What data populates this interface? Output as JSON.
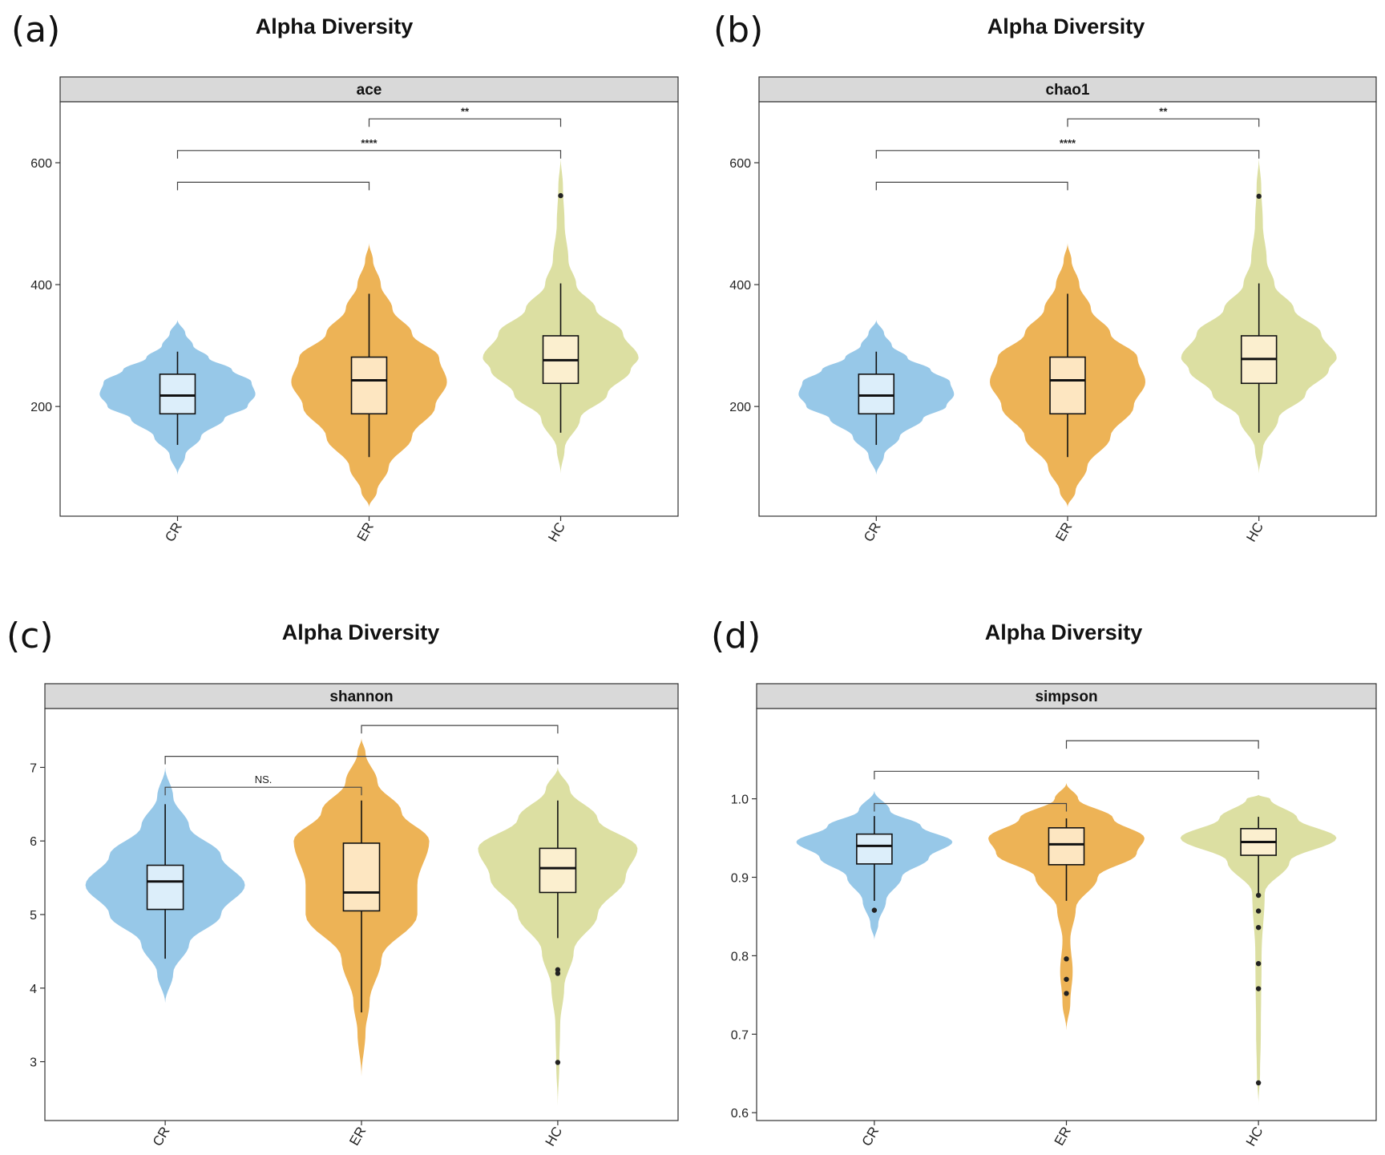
{
  "colors": {
    "CR": "#8ec3e6",
    "ER": "#ecad48",
    "HC": "#d9dc9a",
    "CR_box": "#dceefa",
    "ER_box": "#fde6c1",
    "HC_box": "#fbefcf",
    "strip": "#d9d9d9"
  },
  "chart_data": [
    {
      "type": "violin",
      "panel_label": "(a)",
      "title": "Alpha Diversity",
      "facet": "ace",
      "categories": [
        "CR",
        "ER",
        "HC"
      ],
      "ylim": [
        20,
        700
      ],
      "yticks": [
        200,
        400,
        600
      ],
      "groups": [
        {
          "name": "CR",
          "violin": [
            [
              88,
              0
            ],
            [
              120,
              0.1
            ],
            [
              150,
              0.3
            ],
            [
              180,
              0.6
            ],
            [
              200,
              0.9
            ],
            [
              220,
              1.0
            ],
            [
              240,
              0.95
            ],
            [
              260,
              0.7
            ],
            [
              280,
              0.4
            ],
            [
              300,
              0.2
            ],
            [
              320,
              0.1
            ],
            [
              342,
              0
            ]
          ],
          "q1": 188,
          "median": 218,
          "q3": 253,
          "wlo": 137,
          "whi": 290,
          "outliers": []
        },
        {
          "name": "ER",
          "violin": [
            [
              35,
              0
            ],
            [
              60,
              0.1
            ],
            [
              100,
              0.25
            ],
            [
              150,
              0.55
            ],
            [
              200,
              0.85
            ],
            [
              240,
              1.0
            ],
            [
              280,
              0.9
            ],
            [
              320,
              0.55
            ],
            [
              360,
              0.3
            ],
            [
              400,
              0.15
            ],
            [
              440,
              0.05
            ],
            [
              468,
              0
            ]
          ],
          "q1": 188,
          "median": 243,
          "q3": 281,
          "wlo": 117,
          "whi": 385,
          "outliers": []
        },
        {
          "name": "HC",
          "violin": [
            [
              90,
              0
            ],
            [
              130,
              0.05
            ],
            [
              180,
              0.25
            ],
            [
              220,
              0.6
            ],
            [
              260,
              0.9
            ],
            [
              280,
              1.0
            ],
            [
              320,
              0.8
            ],
            [
              360,
              0.45
            ],
            [
              400,
              0.2
            ],
            [
              440,
              0.1
            ],
            [
              500,
              0.05
            ],
            [
              560,
              0.03
            ],
            [
              610,
              0
            ]
          ],
          "q1": 238,
          "median": 276,
          "q3": 316,
          "wlo": 157,
          "whi": 402,
          "outliers": [
            546
          ]
        }
      ],
      "brackets": [
        {
          "from": 0,
          "to": 1,
          "y": 568,
          "label": ""
        },
        {
          "from": 0,
          "to": 2,
          "y": 620,
          "label": "****"
        },
        {
          "from": 1,
          "to": 2,
          "y": 672,
          "label": "**"
        }
      ]
    },
    {
      "type": "violin",
      "panel_label": "(b)",
      "title": "Alpha Diversity",
      "facet": "chao1",
      "categories": [
        "CR",
        "ER",
        "HC"
      ],
      "ylim": [
        20,
        700
      ],
      "yticks": [
        200,
        400,
        600
      ],
      "groups": [
        {
          "name": "CR",
          "violin": [
            [
              88,
              0
            ],
            [
              120,
              0.1
            ],
            [
              150,
              0.3
            ],
            [
              180,
              0.6
            ],
            [
              200,
              0.9
            ],
            [
              220,
              1.0
            ],
            [
              240,
              0.95
            ],
            [
              260,
              0.7
            ],
            [
              280,
              0.4
            ],
            [
              300,
              0.2
            ],
            [
              320,
              0.1
            ],
            [
              342,
              0
            ]
          ],
          "q1": 188,
          "median": 218,
          "q3": 253,
          "wlo": 137,
          "whi": 290,
          "outliers": []
        },
        {
          "name": "ER",
          "violin": [
            [
              35,
              0
            ],
            [
              60,
              0.1
            ],
            [
              100,
              0.25
            ],
            [
              150,
              0.55
            ],
            [
              200,
              0.85
            ],
            [
              240,
              1.0
            ],
            [
              280,
              0.9
            ],
            [
              320,
              0.55
            ],
            [
              360,
              0.3
            ],
            [
              400,
              0.15
            ],
            [
              440,
              0.05
            ],
            [
              468,
              0
            ]
          ],
          "q1": 188,
          "median": 243,
          "q3": 281,
          "wlo": 117,
          "whi": 385,
          "outliers": []
        },
        {
          "name": "HC",
          "violin": [
            [
              90,
              0
            ],
            [
              130,
              0.05
            ],
            [
              180,
              0.25
            ],
            [
              220,
              0.6
            ],
            [
              260,
              0.9
            ],
            [
              280,
              1.0
            ],
            [
              320,
              0.8
            ],
            [
              360,
              0.45
            ],
            [
              400,
              0.2
            ],
            [
              440,
              0.1
            ],
            [
              500,
              0.05
            ],
            [
              560,
              0.03
            ],
            [
              610,
              0
            ]
          ],
          "q1": 238,
          "median": 278,
          "q3": 316,
          "wlo": 157,
          "whi": 402,
          "outliers": [
            545
          ]
        }
      ],
      "brackets": [
        {
          "from": 0,
          "to": 1,
          "y": 568,
          "label": ""
        },
        {
          "from": 0,
          "to": 2,
          "y": 620,
          "label": "****"
        },
        {
          "from": 1,
          "to": 2,
          "y": 672,
          "label": "**"
        }
      ]
    },
    {
      "type": "violin",
      "panel_label": "(c)",
      "title": "Alpha Diversity",
      "facet": "shannon",
      "categories": [
        "CR",
        "ER",
        "HC"
      ],
      "ylim": [
        2.2,
        7.8
      ],
      "yticks": [
        3,
        4,
        5,
        6,
        7
      ],
      "groups": [
        {
          "name": "CR",
          "violin": [
            [
              3.8,
              0
            ],
            [
              4.2,
              0.1
            ],
            [
              4.6,
              0.3
            ],
            [
              5.0,
              0.7
            ],
            [
              5.4,
              1.0
            ],
            [
              5.8,
              0.7
            ],
            [
              6.2,
              0.3
            ],
            [
              6.6,
              0.1
            ],
            [
              7.0,
              0
            ]
          ],
          "q1": 5.07,
          "median": 5.45,
          "q3": 5.67,
          "wlo": 4.4,
          "whi": 6.5,
          "outliers": []
        },
        {
          "name": "ER",
          "violin": [
            [
              2.8,
              0
            ],
            [
              3.4,
              0.05
            ],
            [
              3.8,
              0.1
            ],
            [
              4.4,
              0.25
            ],
            [
              5.0,
              0.7
            ],
            [
              5.4,
              0.7
            ],
            [
              6.0,
              0.85
            ],
            [
              6.4,
              0.5
            ],
            [
              6.8,
              0.2
            ],
            [
              7.2,
              0.05
            ],
            [
              7.4,
              0
            ]
          ],
          "q1": 5.05,
          "median": 5.3,
          "q3": 5.97,
          "wlo": 3.67,
          "whi": 6.55,
          "outliers": []
        },
        {
          "name": "HC",
          "violin": [
            [
              2.4,
              0
            ],
            [
              3.0,
              0.02
            ],
            [
              3.5,
              0.03
            ],
            [
              4.0,
              0.08
            ],
            [
              4.5,
              0.2
            ],
            [
              5.0,
              0.5
            ],
            [
              5.5,
              0.85
            ],
            [
              5.9,
              1.0
            ],
            [
              6.3,
              0.5
            ],
            [
              6.7,
              0.15
            ],
            [
              7.0,
              0
            ]
          ],
          "q1": 5.3,
          "median": 5.63,
          "q3": 5.9,
          "wlo": 4.68,
          "whi": 6.55,
          "outliers": [
            4.2,
            4.25,
            2.99
          ]
        }
      ],
      "brackets": [
        {
          "from": 0,
          "to": 1,
          "y": 6.73,
          "label": "NS."
        },
        {
          "from": 0,
          "to": 2,
          "y": 7.15,
          "label": ""
        },
        {
          "from": 1,
          "to": 2,
          "y": 7.57,
          "label": ""
        }
      ]
    },
    {
      "type": "violin",
      "panel_label": "(d)",
      "title": "Alpha Diversity",
      "facet": "simpson",
      "categories": [
        "CR",
        "ER",
        "HC"
      ],
      "ylim": [
        0.59,
        1.115
      ],
      "yticks": [
        0.6,
        0.7,
        0.8,
        0.9,
        1.0
      ],
      "tick_labels": [
        "0.6",
        "0.7",
        "0.8",
        "0.9",
        "1.0"
      ],
      "groups": [
        {
          "name": "CR",
          "violin": [
            [
              0.82,
              0
            ],
            [
              0.84,
              0.05
            ],
            [
              0.87,
              0.15
            ],
            [
              0.9,
              0.35
            ],
            [
              0.925,
              0.7
            ],
            [
              0.945,
              1.0
            ],
            [
              0.965,
              0.6
            ],
            [
              0.985,
              0.2
            ],
            [
              1.01,
              0
            ]
          ],
          "q1": 0.917,
          "median": 0.94,
          "q3": 0.955,
          "wlo": 0.87,
          "whi": 0.978,
          "outliers": [
            0.858
          ]
        },
        {
          "name": "ER",
          "violin": [
            [
              0.705,
              0
            ],
            [
              0.74,
              0.05
            ],
            [
              0.78,
              0.08
            ],
            [
              0.82,
              0.05
            ],
            [
              0.86,
              0.12
            ],
            [
              0.9,
              0.4
            ],
            [
              0.93,
              0.9
            ],
            [
              0.95,
              1.0
            ],
            [
              0.975,
              0.6
            ],
            [
              1.0,
              0.15
            ],
            [
              1.02,
              0
            ]
          ],
          "q1": 0.916,
          "median": 0.942,
          "q3": 0.963,
          "wlo": 0.87,
          "whi": 0.975,
          "outliers": [
            0.796,
            0.77,
            0.752
          ]
        },
        {
          "name": "HC",
          "violin": [
            [
              0.61,
              0
            ],
            [
              0.65,
              0.02
            ],
            [
              0.7,
              0.03
            ],
            [
              0.8,
              0.04
            ],
            [
              0.88,
              0.08
            ],
            [
              0.92,
              0.4
            ],
            [
              0.95,
              1.0
            ],
            [
              0.975,
              0.5
            ],
            [
              1.0,
              0.15
            ],
            [
              1.005,
              0
            ]
          ],
          "q1": 0.928,
          "median": 0.945,
          "q3": 0.962,
          "wlo": 0.88,
          "whi": 0.977,
          "outliers": [
            0.877,
            0.857,
            0.836,
            0.79,
            0.758,
            0.638
          ]
        }
      ],
      "brackets": [
        {
          "from": 0,
          "to": 1,
          "y": 0.994,
          "label": ""
        },
        {
          "from": 0,
          "to": 2,
          "y": 1.035,
          "label": ""
        },
        {
          "from": 1,
          "to": 2,
          "y": 1.074,
          "label": ""
        }
      ]
    }
  ]
}
